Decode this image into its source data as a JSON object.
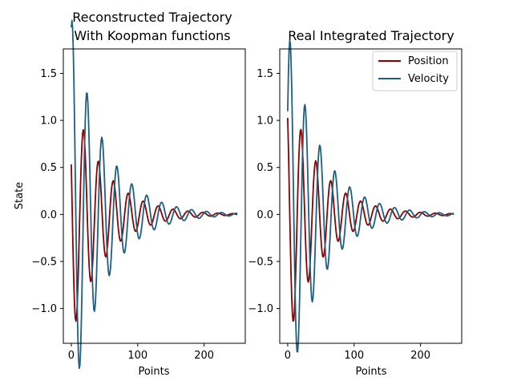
{
  "chart_data": [
    {
      "type": "line",
      "title": "Reconstructed Trajectory\n With Koopman functions",
      "xlabel": "Points",
      "ylabel": "State",
      "xlim": [
        -12,
        262
      ],
      "ylim": [
        -1.37,
        1.76
      ],
      "xticks": [
        0,
        100,
        200
      ],
      "yticks": [
        -1.0,
        -0.5,
        0.0,
        0.5,
        1.0,
        1.5
      ],
      "yticklabels": [
        "−1.0",
        "−0.5",
        "0.0",
        "0.5",
        "1.0",
        "1.5"
      ],
      "legend": null,
      "series": [
        {
          "name": "Position",
          "color": "#8b0000",
          "model": {
            "n": 250,
            "A": 1.31,
            "k": 0.0205,
            "period": 22.5,
            "phase_deg": 156
          }
        },
        {
          "name": "Velocity",
          "color": "#1f5f80",
          "model": {
            "n": 250,
            "A": 2.11,
            "k": 0.0205,
            "period": 22.5,
            "phase_deg": 70.5
          }
        }
      ]
    },
    {
      "type": "line",
      "title": "Real Integrated Trajectory",
      "xlabel": "Points",
      "ylabel": "",
      "xlim": [
        -12,
        262
      ],
      "ylim": [
        -1.37,
        1.76
      ],
      "xticks": [
        0,
        100,
        200
      ],
      "yticks": [
        -1.0,
        -0.5,
        0.0,
        0.5,
        1.0,
        1.5
      ],
      "yticklabels": [
        "−1.0",
        "−0.5",
        "0.0",
        "0.5",
        "1.0",
        "1.5"
      ],
      "legend": "top-right",
      "series": [
        {
          "name": "Position",
          "color": "#8b0000",
          "model": {
            "n": 250,
            "A": 1.36,
            "k": 0.0205,
            "period": 22.5,
            "phase_deg": 131
          }
        },
        {
          "name": "Velocity",
          "color": "#1f5f80",
          "model": {
            "n": 250,
            "A": 1.99,
            "k": 0.0205,
            "period": 22.5,
            "phase_deg": 33.5
          }
        }
      ]
    }
  ]
}
